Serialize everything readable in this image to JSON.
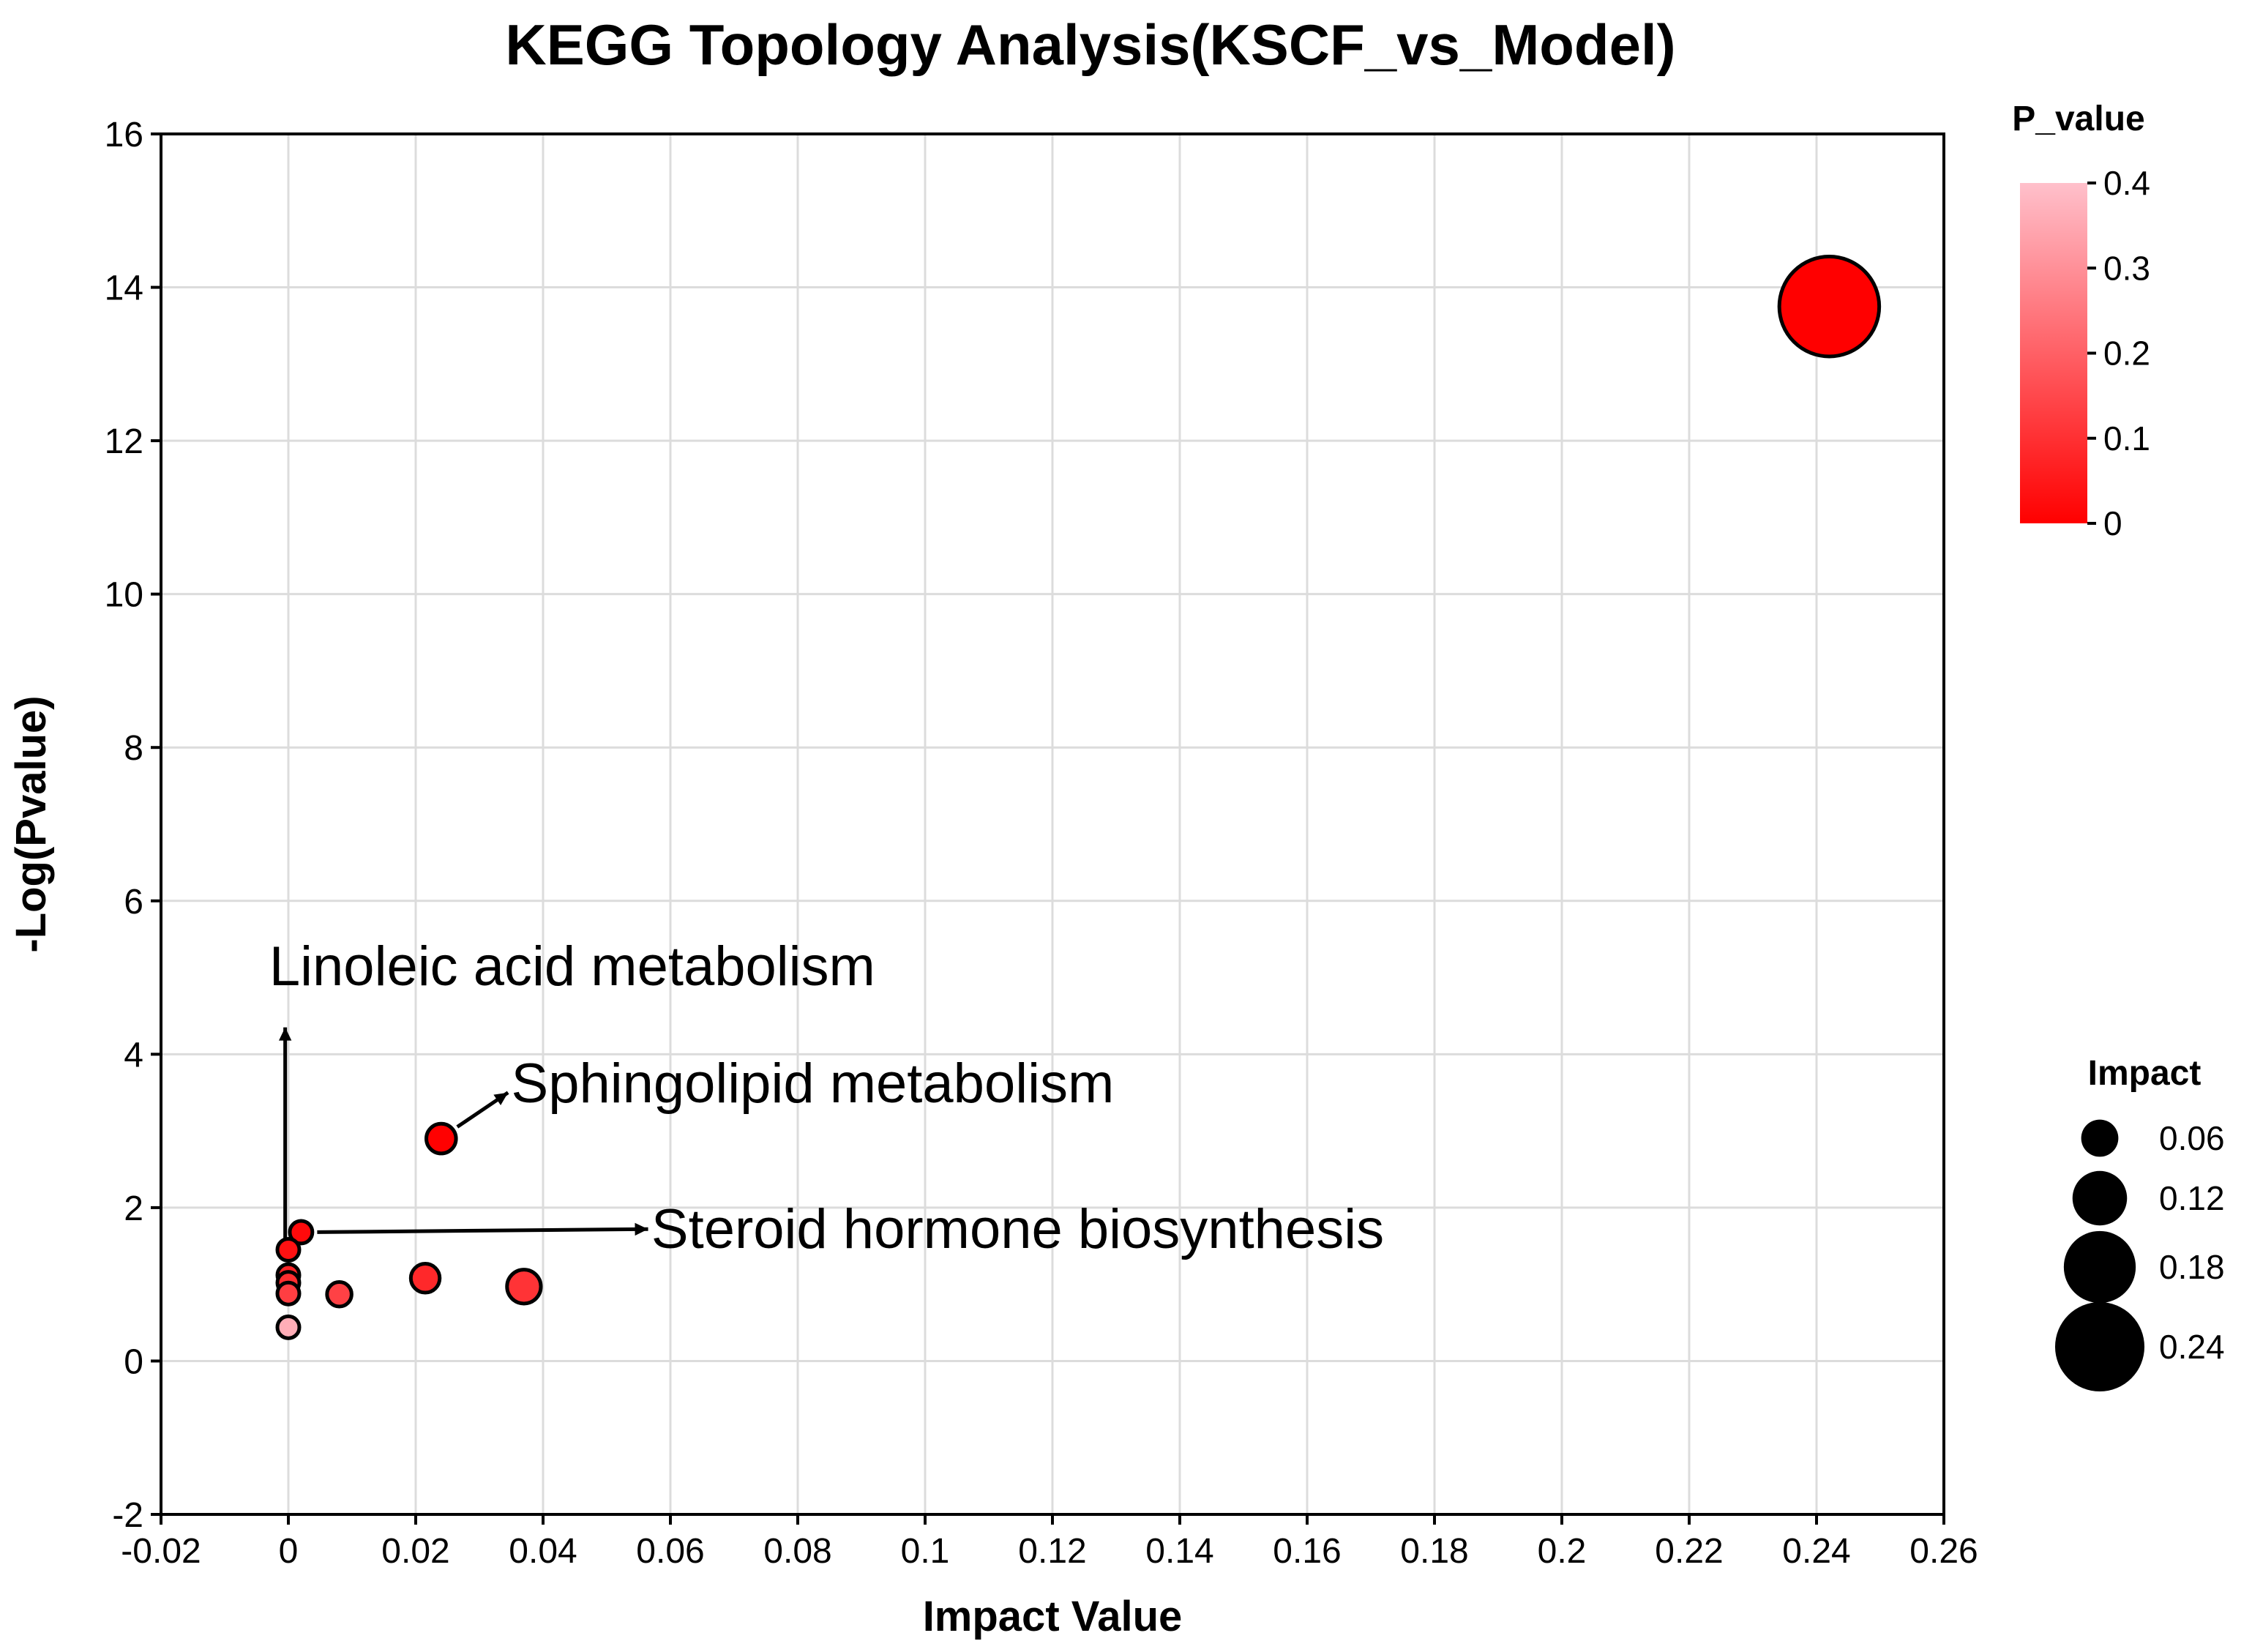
{
  "chart_data": {
    "type": "scatter",
    "title": "KEGG Topology Analysis(KSCF_vs_Model)",
    "xlabel": "Impact Value",
    "ylabel": "-Log(Pvalue)",
    "xlim": [
      -0.02,
      0.26
    ],
    "ylim": [
      -2,
      16
    ],
    "x_ticks": [
      -0.02,
      0,
      0.02,
      0.04,
      0.06,
      0.08,
      0.1,
      0.12,
      0.14,
      0.16,
      0.18,
      0.2,
      0.22,
      0.24,
      0.26
    ],
    "x_tick_labels": [
      "-0.02",
      "0",
      "0.02",
      "0.04",
      "0.06",
      "0.08",
      "0.1",
      "0.12",
      "0.14",
      "0.16",
      "0.18",
      "0.2",
      "0.22",
      "0.24",
      "0.26"
    ],
    "y_ticks": [
      -2,
      0,
      2,
      4,
      6,
      8,
      10,
      12,
      14,
      16
    ],
    "y_tick_labels": [
      "-2",
      "0",
      "2",
      "4",
      "6",
      "8",
      "10",
      "12",
      "14",
      "16"
    ],
    "grid": true,
    "points": [
      {
        "impact": 0.242,
        "neg_log_p": 13.75,
        "p_value": 0.0
      },
      {
        "impact": 0.024,
        "neg_log_p": 2.9,
        "p_value": 0.0013
      },
      {
        "impact": 0.002,
        "neg_log_p": 1.68,
        "p_value": 0.021
      },
      {
        "impact": 0.0,
        "neg_log_p": 1.45,
        "p_value": 0.035
      },
      {
        "impact": 0.0,
        "neg_log_p": 1.12,
        "p_value": 0.076
      },
      {
        "impact": 0.0,
        "neg_log_p": 1.02,
        "p_value": 0.095
      },
      {
        "impact": 0.0,
        "neg_log_p": 0.88,
        "p_value": 0.13
      },
      {
        "impact": 0.0215,
        "neg_log_p": 1.08,
        "p_value": 0.083
      },
      {
        "impact": 0.037,
        "neg_log_p": 0.97,
        "p_value": 0.107
      },
      {
        "impact": 0.008,
        "neg_log_p": 0.87,
        "p_value": 0.135
      },
      {
        "impact": 0.0,
        "neg_log_p": 0.44,
        "p_value": 0.36
      }
    ],
    "annotations": [
      {
        "text": "Linoleic acid metabolism",
        "point_x": -0.0005,
        "point_y": 1.55,
        "text_x": -0.003,
        "text_y": 4.9
      },
      {
        "text": "Sphingolipid metabolism",
        "point_x": 0.024,
        "point_y": 2.9,
        "text_x": 0.035,
        "text_y": 3.6
      },
      {
        "text": "Steroid hormone biosynthesis",
        "point_x": 0.002,
        "point_y": 1.68,
        "text_x": 0.057,
        "text_y": 1.72
      }
    ],
    "color_legend": {
      "title": "P_value",
      "min": 0,
      "max": 0.4,
      "ticks": [
        "0",
        "0.1",
        "0.2",
        "0.3",
        "0.4"
      ],
      "color_low": "#ff0000",
      "color_high": "#ffc0cb"
    },
    "size_legend": {
      "title": "Impact",
      "values": [
        0.06,
        0.12,
        0.18,
        0.24
      ],
      "labels": [
        "0.06",
        "0.12",
        "0.18",
        "0.24"
      ]
    }
  }
}
